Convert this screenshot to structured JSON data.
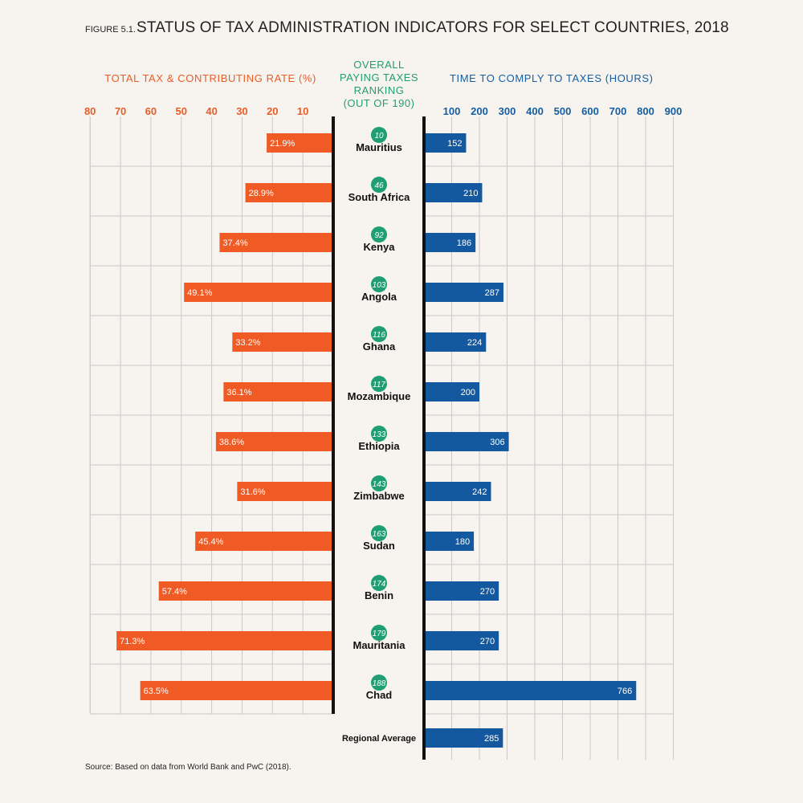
{
  "figure": {
    "label": "FIGURE 5.1.",
    "title": "STATUS OF TAX ADMINISTRATION INDICATORS FOR SELECT COUNTRIES, 2018"
  },
  "headers": {
    "left": "TOTAL TAX & CONTRIBUTING RATE (%)",
    "middle_lines": [
      "OVERALL",
      "PAYING TAXES",
      "RANKING",
      "(OUT OF 190)"
    ],
    "right": "TIME TO COMPLY TO TAXES (HOURS)"
  },
  "source": "Source: Based on data from World Bank and PwC (2018).",
  "colors": {
    "left_bar": "#f05a24",
    "right_bar": "#14599f",
    "rank_badge": "#1f9e73",
    "left_header": "#e85c28",
    "right_header": "#155ea2"
  },
  "chart_data": {
    "type": "bar",
    "left_axis": {
      "ticks": [
        "80",
        "70",
        "60",
        "50",
        "40",
        "30",
        "20",
        "10"
      ],
      "range": [
        0,
        80
      ]
    },
    "right_axis": {
      "ticks": [
        "100",
        "200",
        "300",
        "400",
        "500",
        "600",
        "700",
        "800",
        "900"
      ],
      "range": [
        0,
        900
      ]
    },
    "rows": [
      {
        "country": "Mauritius",
        "rank": "10",
        "tax_rate": 21.9,
        "tax_rate_label": "21.9%",
        "hours": 152,
        "hours_label": "152"
      },
      {
        "country": "South Africa",
        "rank": "46",
        "tax_rate": 28.9,
        "tax_rate_label": "28.9%",
        "hours": 210,
        "hours_label": "210"
      },
      {
        "country": "Kenya",
        "rank": "92",
        "tax_rate": 37.4,
        "tax_rate_label": "37.4%",
        "hours": 186,
        "hours_label": "186"
      },
      {
        "country": "Angola",
        "rank": "103",
        "tax_rate": 49.1,
        "tax_rate_label": "49.1%",
        "hours": 287,
        "hours_label": "287"
      },
      {
        "country": "Ghana",
        "rank": "116",
        "tax_rate": 33.2,
        "tax_rate_label": "33.2%",
        "hours": 224,
        "hours_label": "224"
      },
      {
        "country": "Mozambique",
        "rank": "117",
        "tax_rate": 36.1,
        "tax_rate_label": "36.1%",
        "hours": 200,
        "hours_label": "200"
      },
      {
        "country": "Ethiopia",
        "rank": "133",
        "tax_rate": 38.6,
        "tax_rate_label": "38.6%",
        "hours": 306,
        "hours_label": "306"
      },
      {
        "country": "Zimbabwe",
        "rank": "143",
        "tax_rate": 31.6,
        "tax_rate_label": "31.6%",
        "hours": 242,
        "hours_label": "242"
      },
      {
        "country": "Sudan",
        "rank": "163",
        "tax_rate": 45.4,
        "tax_rate_label": "45.4%",
        "hours": 180,
        "hours_label": "180"
      },
      {
        "country": "Benin",
        "rank": "174",
        "tax_rate": 57.4,
        "tax_rate_label": "57.4%",
        "hours": 270,
        "hours_label": "270"
      },
      {
        "country": "Mauritania",
        "rank": "179",
        "tax_rate": 71.3,
        "tax_rate_label": "71.3%",
        "hours": 270,
        "hours_label": "270"
      },
      {
        "country": "Chad",
        "rank": "188",
        "tax_rate": 63.5,
        "tax_rate_label": "63.5%",
        "hours": 766,
        "hours_label": "766"
      }
    ],
    "regional_average": {
      "label": "Regional Average",
      "hours": 285,
      "hours_label": "285"
    }
  }
}
